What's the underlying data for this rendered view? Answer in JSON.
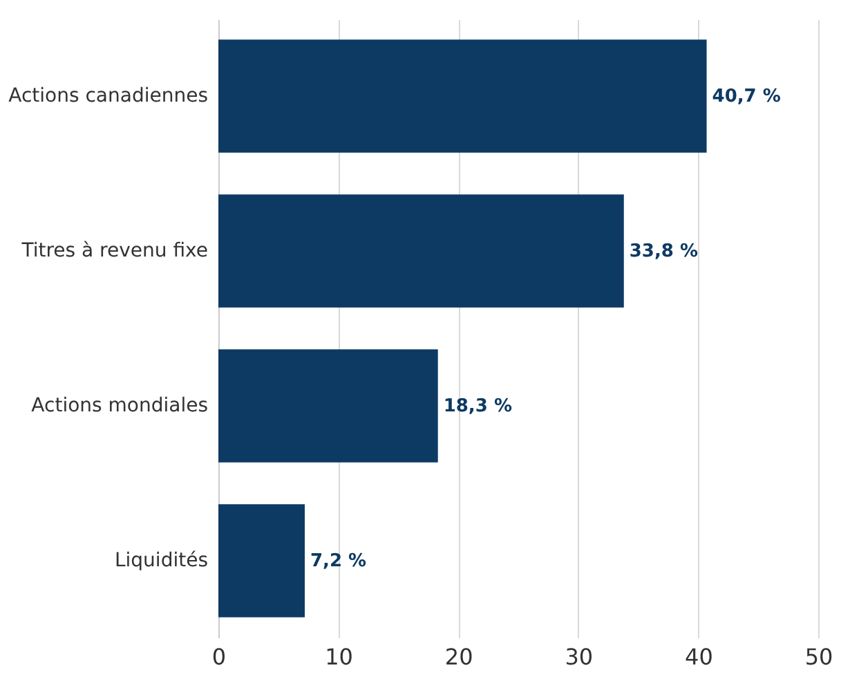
{
  "chart_data": {
    "type": "bar",
    "orientation": "horizontal",
    "categories": [
      "Actions canadiennes",
      "Titres à revenu fixe",
      "Actions mondiales",
      "Liquidités"
    ],
    "values": [
      40.7,
      33.8,
      18.3,
      7.2
    ],
    "value_labels": [
      "40,7 %",
      "33,8 %",
      "18,3 %",
      "7,2 %"
    ],
    "color": "#0d3a63",
    "xlim": [
      0,
      50
    ],
    "xticks": [
      0,
      10,
      20,
      30,
      40,
      50
    ],
    "grid": "x"
  }
}
